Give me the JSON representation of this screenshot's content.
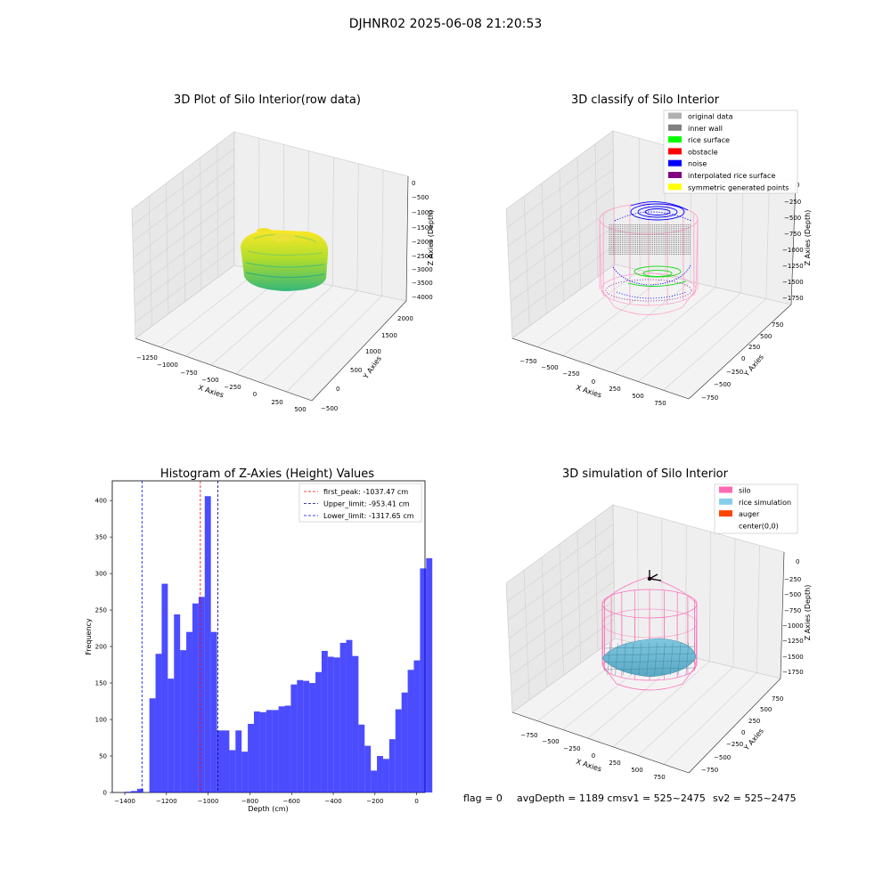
{
  "figure": {
    "suptitle": "DJHNR02 2025-06-08 21:20:53",
    "footer": {
      "flag": "flag = 0",
      "avg": "avgDepth = 1189 cmsv1 = 525~2475",
      "sv2": "sv2 = 525~2475"
    }
  },
  "chart_data": [
    {
      "type": "scatter3d",
      "title": "3D Plot of Silo Interior(row data)",
      "xlabel": "X Axies",
      "ylabel": "Y Axies",
      "zlabel": "Z Axies (Depth)",
      "xticks": [
        "−1250",
        "−1000",
        "−750",
        "−500",
        "−250",
        "0",
        "250",
        "500"
      ],
      "yticks": [
        "−500",
        "0",
        "500",
        "1000",
        "1500",
        "2000"
      ],
      "zticks": [
        "0",
        "−500",
        "−1000",
        "−1500",
        "−2000",
        "−2500",
        "−3000",
        "−3500",
        "−4000"
      ],
      "colormap": [
        "#fde725",
        "#b5de2b",
        "#35b779",
        "#1f9e89"
      ]
    },
    {
      "type": "scatter3d",
      "title": "3D classify of Silo Interior",
      "xlabel": "X Axies",
      "ylabel": "Y Axies",
      "zlabel": "Z Axies (Depth)",
      "xticks": [
        "−750",
        "−500",
        "−250",
        "0",
        "250",
        "500",
        "750"
      ],
      "yticks": [
        "−750",
        "−500",
        "−250",
        "0",
        "250",
        "500",
        "750"
      ],
      "zticks": [
        "0",
        "−250",
        "−500",
        "−750",
        "−1000",
        "−1250",
        "−1500",
        "−1750"
      ],
      "legend": [
        {
          "label": "original data",
          "color": "#b0b0b0"
        },
        {
          "label": "inner wall",
          "color": "#808080"
        },
        {
          "label": "rice surface",
          "color": "#00ff00"
        },
        {
          "label": "obstacle",
          "color": "#ff0000"
        },
        {
          "label": "noise",
          "color": "#0000ff"
        },
        {
          "label": "interpolated rice surface",
          "color": "#800080"
        },
        {
          "label": "symmetric generated points",
          "color": "#ffff00"
        }
      ]
    },
    {
      "type": "bar",
      "title": "Histogram of Z-Axies (Height) Values",
      "xlabel": "Depth (cm)",
      "ylabel": "Frequency",
      "xlim": [
        -1460,
        40
      ],
      "ylim": [
        0,
        427
      ],
      "xticks": [
        -1400,
        -1200,
        -1000,
        -800,
        -600,
        -400,
        -200,
        0
      ],
      "yticks": [
        0,
        50,
        100,
        150,
        200,
        250,
        300,
        350,
        400
      ],
      "bin_start": -1400,
      "bin_width": 29.5,
      "values": [
        1,
        2,
        5,
        0,
        129,
        190,
        286,
        156,
        244,
        195,
        220,
        259,
        268,
        406,
        220,
        85,
        85,
        58,
        85,
        56,
        94,
        111,
        110,
        113,
        113,
        118,
        119,
        148,
        154,
        153,
        150,
        165,
        194,
        186,
        185,
        205,
        209,
        187,
        93,
        64,
        30,
        50,
        46,
        73,
        114,
        137,
        168,
        181,
        307,
        321
      ],
      "bar_color": "#0000ff",
      "vlines": [
        {
          "x": -1037.47,
          "label": "first_peak: -1037.47 cm",
          "color": "#ff0000"
        },
        {
          "x": -953.41,
          "label": "Upper_limit: -953.41 cm",
          "color": "#000080"
        },
        {
          "x": -1317.65,
          "label": "Lower_limit: -1317.65 cm",
          "color": "#0000ff"
        }
      ],
      "legend_position": "top-right"
    },
    {
      "type": "surface3d",
      "title": "3D simulation of Silo Interior",
      "xlabel": "X Axies",
      "ylabel": "Y Axies",
      "zlabel": "Z Axies (Depth)",
      "xticks": [
        "−750",
        "−500",
        "−250",
        "0",
        "250",
        "500",
        "750"
      ],
      "yticks": [
        "−750",
        "−500",
        "−250",
        "0",
        "250",
        "500",
        "750"
      ],
      "zticks": [
        "0",
        "−250",
        "−500",
        "−750",
        "−1000",
        "−1250",
        "−1500",
        "−1750"
      ],
      "legend": [
        {
          "label": "silo",
          "color": "#ff69b4"
        },
        {
          "label": "rice simulation",
          "color": "#87ceeb"
        },
        {
          "label": "auger",
          "color": "#ff4500"
        },
        {
          "label": "center(0,0)",
          "color": "none"
        }
      ]
    }
  ]
}
